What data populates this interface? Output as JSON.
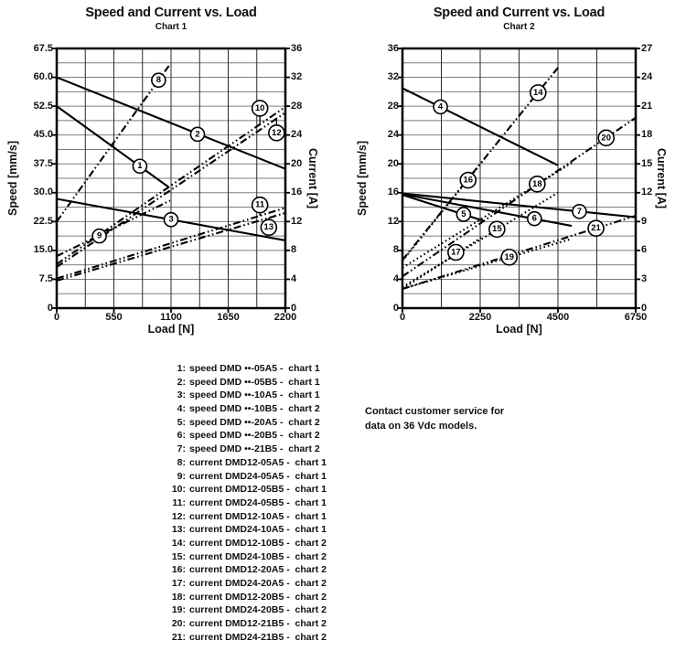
{
  "note": {
    "line1": "Contact customer service for",
    "line2": "data on 36 Vdc models."
  },
  "legend": {
    "items": [
      {
        "n": "1:",
        "t": "speed DMD ••-05A5 -  chart 1"
      },
      {
        "n": "2:",
        "t": "speed DMD ••-05B5 -  chart 1"
      },
      {
        "n": "3:",
        "t": "speed DMD ••-10A5 -  chart 1"
      },
      {
        "n": "4:",
        "t": "speed DMD ••-10B5 -  chart 2"
      },
      {
        "n": "5:",
        "t": "speed DMD ••-20A5 -  chart 2"
      },
      {
        "n": "6:",
        "t": "speed DMD ••-20B5 -  chart 2"
      },
      {
        "n": "7:",
        "t": "speed DMD ••-21B5 -  chart 2"
      },
      {
        "n": "8:",
        "t": "current DMD12-05A5 -  chart 1"
      },
      {
        "n": "9:",
        "t": "current DMD24-05A5 -  chart 1"
      },
      {
        "n": "10:",
        "t": "current DMD12-05B5 -  chart 1"
      },
      {
        "n": "11:",
        "t": "current DMD24-05B5 -  chart 1"
      },
      {
        "n": "12:",
        "t": "current DMD12-10A5 -  chart 1"
      },
      {
        "n": "13:",
        "t": "current DMD24-10A5 -  chart 1"
      },
      {
        "n": "14:",
        "t": "current DMD12-10B5 -  chart 2"
      },
      {
        "n": "15:",
        "t": "current DMD24-10B5 -  chart 2"
      },
      {
        "n": "16:",
        "t": "current DMD12-20A5 -  chart 2"
      },
      {
        "n": "17:",
        "t": "current DMD24-20A5 -  chart 2"
      },
      {
        "n": "18:",
        "t": "current DMD12-20B5 -  chart 2"
      },
      {
        "n": "19:",
        "t": "current DMD24-20B5 -  chart 2"
      },
      {
        "n": "20:",
        "t": "current DMD12-21B5 -  chart 2"
      },
      {
        "n": "21:",
        "t": "current DMD24-21B5 -  chart 2"
      }
    ]
  },
  "chart_data": [
    {
      "id": "chart1",
      "type": "line",
      "title": "Speed and Current vs. Load",
      "subtitle": "Chart 1",
      "xlabel": "Load [N]",
      "ylabel_left": "Speed [mm/s]",
      "ylabel_right": "Current [A]",
      "x_range": [
        0,
        2200
      ],
      "x_ticks": [
        0,
        550,
        1100,
        1650,
        2200
      ],
      "x_divisions": 8,
      "y_left_range": [
        0,
        67.5
      ],
      "y_left_tick_labels": [
        "67.5",
        "60.0",
        "52.5",
        "45.0",
        "37.5",
        "30.0",
        "22.5",
        "15.0",
        "7.5",
        "0"
      ],
      "y_right_range": [
        0,
        36
      ],
      "y_right_tick_labels": [
        "36",
        "32",
        "28",
        "24",
        "20",
        "16",
        "12",
        "8",
        "4",
        "0"
      ],
      "y_divisions": 18,
      "grid": true,
      "legend_position": "below-figure",
      "series": [
        {
          "num": "1",
          "name": "speed DMD••-05A5",
          "axis": "left",
          "style": "solid",
          "points": [
            [
              0,
              52.5
            ],
            [
              1075,
              31.5
            ]
          ],
          "label_at": [
            800,
            36.9
          ]
        },
        {
          "num": "2",
          "name": "speed DMD••-05B5",
          "axis": "left",
          "style": "solid",
          "points": [
            [
              0,
              60.0
            ],
            [
              2200,
              36.2
            ]
          ],
          "label_at": [
            1355,
            45.2
          ]
        },
        {
          "num": "3",
          "name": "speed DMD••-10A5",
          "axis": "left",
          "style": "solid",
          "points": [
            [
              0,
              28.4
            ],
            [
              2200,
              17.6
            ]
          ],
          "label_at": [
            1100,
            23.0
          ]
        },
        {
          "num": "8",
          "name": "current DMD12-05A5",
          "axis": "right",
          "style": "dashdot",
          "points": [
            [
              0,
              12.0
            ],
            [
              1090,
              33.8
            ]
          ],
          "label_at": [
            980,
            31.6
          ]
        },
        {
          "num": "9",
          "name": "current DMD24-05A5",
          "axis": "right",
          "style": "dashdot",
          "points": [
            [
              0,
              7.2
            ],
            [
              1090,
              14.9
            ]
          ],
          "label_at": [
            410,
            10.0
          ]
        },
        {
          "num": "10",
          "name": "current DMD12-05B5",
          "axis": "right",
          "style": "dashdot",
          "points": [
            [
              0,
              6.1
            ],
            [
              2200,
              27.9
            ]
          ],
          "label_at": [
            1955,
            27.7
          ]
        },
        {
          "num": "11",
          "name": "current DMD24-05B5",
          "axis": "right",
          "style": "dashdot",
          "points": [
            [
              0,
              4.1
            ],
            [
              2200,
              13.9
            ]
          ],
          "label_at": [
            1955,
            14.3
          ]
        },
        {
          "num": "12",
          "name": "current DMD12-10A5",
          "axis": "right",
          "style": "dashdot",
          "points": [
            [
              0,
              5.7
            ],
            [
              2200,
              27.1
            ]
          ],
          "label_at": [
            2115,
            24.3
          ]
        },
        {
          "num": "13",
          "name": "current DMD24-10A5",
          "axis": "right",
          "style": "dashdot",
          "points": [
            [
              0,
              3.8
            ],
            [
              2200,
              13.2
            ]
          ],
          "label_at": [
            2040,
            11.2
          ]
        }
      ]
    },
    {
      "id": "chart2",
      "type": "line",
      "title": "Speed and Current vs. Load",
      "subtitle": "Chart 2",
      "xlabel": "Load [N]",
      "ylabel_left": "Speed [mm/s]",
      "ylabel_right": "Current [A]",
      "x_range": [
        0,
        6750
      ],
      "x_ticks": [
        0,
        2250,
        4500,
        6750
      ],
      "x_divisions": 6,
      "y_left_range": [
        0,
        36
      ],
      "y_left_tick_labels": [
        "36",
        "32",
        "28",
        "24",
        "20",
        "16",
        "12",
        "8",
        "4",
        "0"
      ],
      "y_right_range": [
        0,
        27
      ],
      "y_right_tick_labels": [
        "27",
        "24",
        "21",
        "18",
        "15",
        "12",
        "9",
        "6",
        "3",
        "0"
      ],
      "y_divisions": 18,
      "grid": true,
      "legend_position": "below-figure",
      "series": [
        {
          "num": "4",
          "name": "speed DMD••-10B5",
          "axis": "left",
          "style": "solid",
          "points": [
            [
              0,
              30.5
            ],
            [
              4500,
              19.8
            ]
          ],
          "label_at": [
            1100,
            27.9
          ]
        },
        {
          "num": "5",
          "name": "speed DMD••-20A5",
          "axis": "left",
          "style": "solid",
          "points": [
            [
              0,
              15.7
            ],
            [
              2350,
              12.1
            ]
          ],
          "label_at": [
            1770,
            13.0
          ]
        },
        {
          "num": "6",
          "name": "speed DMD••-20B5",
          "axis": "left",
          "style": "solid",
          "points": [
            [
              0,
              15.8
            ],
            [
              4900,
              11.4
            ]
          ],
          "label_at": [
            3820,
            12.4
          ]
        },
        {
          "num": "7",
          "name": "speed DMD••-21B5",
          "axis": "left",
          "style": "solid",
          "points": [
            [
              0,
              15.9
            ],
            [
              6750,
              12.6
            ]
          ],
          "label_at": [
            5120,
            13.4
          ]
        },
        {
          "num": "14",
          "name": "current DMD12-10B5",
          "axis": "right",
          "style": "dashdot",
          "points": [
            [
              0,
              5.0
            ],
            [
              4500,
              25.0
            ]
          ],
          "label_at": [
            3925,
            22.4
          ]
        },
        {
          "num": "15",
          "name": "current DMD24-10B5",
          "axis": "right",
          "style": "dotted",
          "points": [
            [
              0,
              2.2
            ],
            [
              4500,
              12.0
            ]
          ],
          "label_at": [
            2735,
            8.2
          ]
        },
        {
          "num": "16",
          "name": "current DMD12-20A5",
          "axis": "right",
          "style": "dotted",
          "points": [
            [
              0,
              4.9
            ],
            [
              2350,
              15.4
            ]
          ],
          "label_at": [
            1900,
            13.3
          ]
        },
        {
          "num": "17",
          "name": "current DMD24-20A5",
          "axis": "right",
          "style": "dotted",
          "points": [
            [
              0,
              2.0
            ],
            [
              2350,
              7.5
            ]
          ],
          "label_at": [
            1545,
            5.8
          ]
        },
        {
          "num": "18",
          "name": "current DMD12-20B5",
          "axis": "right",
          "style": "dotted",
          "points": [
            [
              0,
              4.2
            ],
            [
              4900,
              15.1
            ]
          ],
          "label_at": [
            3900,
            12.9
          ]
        },
        {
          "num": "19",
          "name": "current DMD24-20B5",
          "axis": "right",
          "style": "dotted",
          "points": [
            [
              0,
              2.0
            ],
            [
              4900,
              7.2
            ]
          ],
          "label_at": [
            3090,
            5.3
          ]
        },
        {
          "num": "20",
          "name": "current DMD12-21B5",
          "axis": "right",
          "style": "dashdot",
          "points": [
            [
              0,
              3.3
            ],
            [
              6750,
              19.8
            ]
          ],
          "label_at": [
            5895,
            17.7
          ]
        },
        {
          "num": "21",
          "name": "current DMD24-21B5",
          "axis": "right",
          "style": "dashdot",
          "points": [
            [
              0,
              2.0
            ],
            [
              6750,
              9.6
            ]
          ],
          "label_at": [
            5600,
            8.3
          ]
        }
      ]
    }
  ]
}
